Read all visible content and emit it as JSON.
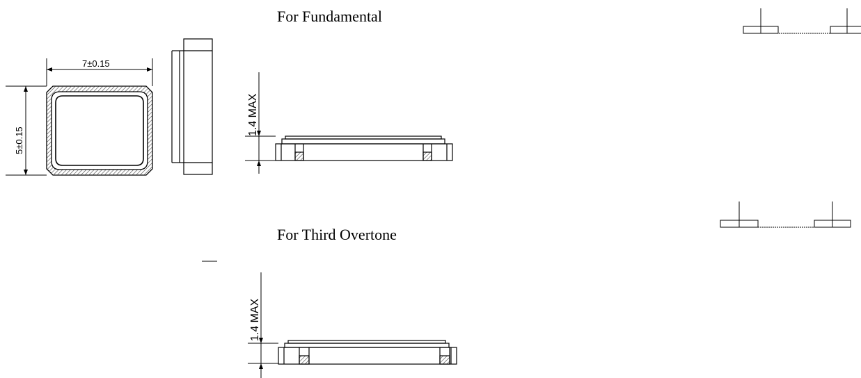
{
  "captions": {
    "fundamental": "For Fundamental",
    "third_overtone": "For Third Overtone"
  },
  "dimensions": {
    "width": "7±0.15",
    "height": "5±0.15",
    "thickness_fundamental": "1.4 MAX",
    "thickness_overtone": "1.4 MAX"
  },
  "colors": {
    "line": "#000000",
    "hatch": "#444444",
    "background": "#ffffff"
  }
}
